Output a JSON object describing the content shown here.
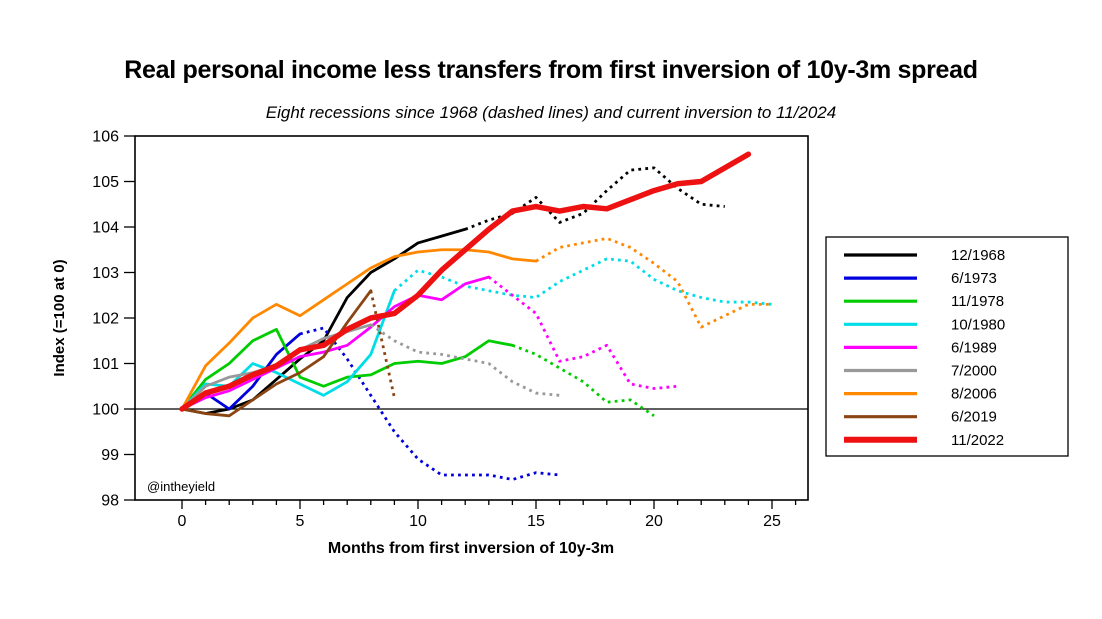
{
  "title": "Real personal income less transfers from first inversion of 10y-3m spread",
  "subtitle": "Eight recessions since 1968 (dashed lines) and current inversion to 11/2024",
  "watermark": "@intheyield",
  "chart_data": {
    "type": "line",
    "title": "Real personal income less transfers from first inversion of 10y-3m spread",
    "subtitle": "Eight recessions since 1968 (dashed lines) and current inversion to 11/2024",
    "xlabel": "Months from first inversion of 10y-3m",
    "ylabel": "Index (=100 at 0)",
    "xlim": [
      -2,
      26.5
    ],
    "ylim": [
      98,
      106
    ],
    "x_major_ticks": [
      0,
      5,
      10,
      15,
      20,
      25
    ],
    "x_minor_tick_step": 1,
    "x_minor_tick_max": 26,
    "y_ticks": [
      98,
      99,
      100,
      101,
      102,
      103,
      104,
      105,
      106
    ],
    "baseline_y": 100,
    "grid": "baseline-only",
    "legend_position": "outside-right",
    "series": [
      {
        "name": "12/1968",
        "color": "#000000",
        "line_width": 2.8,
        "dotted_from_month": 12,
        "values": [
          100,
          99.9,
          100,
          100.2,
          100.65,
          101.1,
          101.5,
          102.45,
          103,
          103.3,
          103.65,
          103.8,
          103.95,
          104.15,
          104.3,
          104.65,
          104.1,
          104.3,
          104.8,
          105.25,
          105.3,
          104.85,
          104.5,
          104.45
        ]
      },
      {
        "name": "6/1973",
        "color": "#0000dd",
        "line_width": 2.8,
        "dotted_from_month": 5,
        "values": [
          100,
          100.35,
          100,
          100.5,
          101.2,
          101.65,
          101.78,
          101.1,
          100.3,
          99.5,
          98.9,
          98.55,
          98.55,
          98.55,
          98.45,
          98.6,
          98.55
        ]
      },
      {
        "name": "11/1978",
        "color": "#00cc00",
        "line_width": 2.8,
        "dotted_from_month": 14,
        "values": [
          100,
          100.65,
          101,
          101.5,
          101.75,
          100.7,
          100.5,
          100.7,
          100.75,
          101,
          101.05,
          101,
          101.15,
          101.5,
          101.4,
          101.2,
          100.9,
          100.6,
          100.15,
          100.2,
          99.85
        ]
      },
      {
        "name": "10/1980",
        "color": "#00dde8",
        "line_width": 2.8,
        "dotted_from_month": 9,
        "values": [
          100,
          100.55,
          100.5,
          101,
          100.8,
          100.55,
          100.3,
          100.6,
          101.2,
          102.6,
          103.05,
          102.9,
          102.7,
          102.6,
          102.5,
          102.45,
          102.8,
          103.05,
          103.3,
          103.25,
          102.85,
          102.6,
          102.45,
          102.35,
          102.35,
          102.3
        ]
      },
      {
        "name": "6/1989",
        "color": "#ff00ff",
        "line_width": 2.8,
        "dotted_from_month": 13,
        "values": [
          100,
          100.25,
          100.4,
          100.65,
          100.9,
          101.15,
          101.25,
          101.4,
          101.8,
          102.25,
          102.5,
          102.4,
          102.75,
          102.9,
          102.5,
          102.1,
          101.05,
          101.15,
          101.4,
          100.55,
          100.45,
          100.5
        ]
      },
      {
        "name": "7/2000",
        "color": "#999999",
        "line_width": 2.8,
        "dotted_from_month": 8,
        "values": [
          100,
          100.5,
          100.7,
          100.8,
          100.95,
          101.3,
          101.55,
          101.7,
          101.85,
          101.5,
          101.25,
          101.2,
          101.1,
          101,
          100.6,
          100.35,
          100.3
        ]
      },
      {
        "name": "8/2006",
        "color": "#ff8800",
        "line_width": 2.8,
        "dotted_from_month": 15,
        "values": [
          100,
          100.95,
          101.45,
          102,
          102.3,
          102.05,
          102.4,
          102.75,
          103.1,
          103.35,
          103.45,
          103.5,
          103.5,
          103.45,
          103.3,
          103.25,
          103.55,
          103.65,
          103.75,
          103.55,
          103.2,
          102.8,
          101.8,
          102.05,
          102.3,
          102.3
        ]
      },
      {
        "name": "6/2019",
        "color": "#8b4513",
        "line_width": 2.8,
        "dotted_from_month": 8,
        "values": [
          100,
          99.9,
          99.85,
          100.2,
          100.55,
          100.8,
          101.15,
          101.9,
          102.6,
          100.25
        ]
      },
      {
        "name": "11/2022",
        "color": "#ee1111",
        "line_width": 5.5,
        "dotted_from_month": null,
        "values": [
          100,
          100.35,
          100.5,
          100.75,
          100.95,
          101.3,
          101.4,
          101.75,
          102,
          102.1,
          102.5,
          103.05,
          103.5,
          103.95,
          104.35,
          104.45,
          104.35,
          104.45,
          104.4,
          104.6,
          104.8,
          104.95,
          105,
          105.3,
          105.6
        ]
      }
    ]
  }
}
